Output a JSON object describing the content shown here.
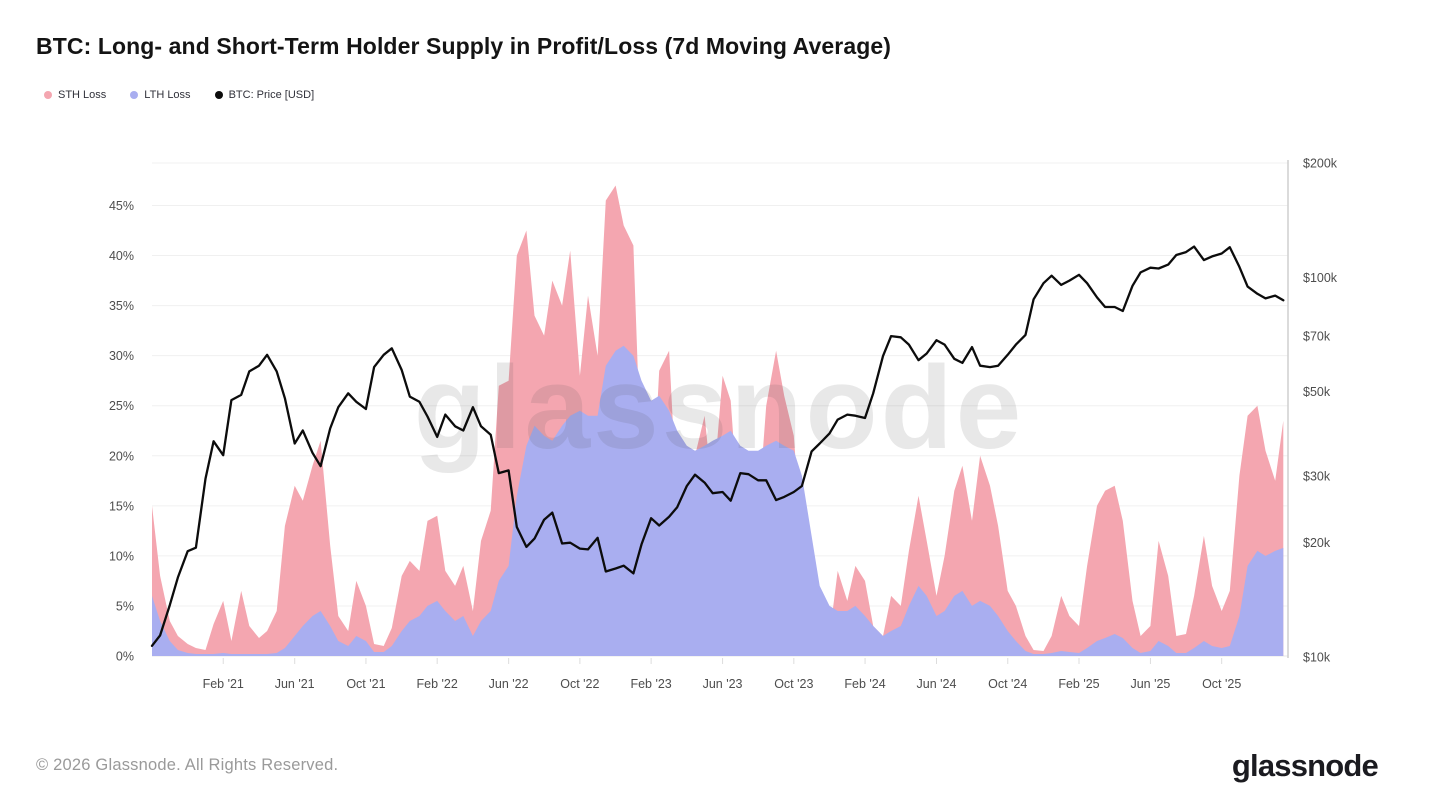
{
  "page": {
    "title": "BTC: Long- and Short-Term Holder Supply in Profit/Loss (7d Moving Average)"
  },
  "legend": {
    "items": [
      {
        "label": "STH Loss",
        "color": "#f4a6b0"
      },
      {
        "label": "LTH Loss",
        "color": "#a9aef0"
      },
      {
        "label": "BTC: Price [USD]",
        "color": "#0c0c0c"
      }
    ]
  },
  "watermark": {
    "text": "glassnode"
  },
  "footer": {
    "copyright": "© 2026 Glassnode. All Rights Reserved.",
    "brand": "glassnode"
  },
  "chart_data": {
    "type": "area",
    "title": "BTC: Long- and Short-Term Holder Supply in Profit/Loss (7d Moving Average)",
    "x_unit": "decimal_year",
    "x_range": [
      2020.75,
      2026.06
    ],
    "grid": "horizontal-only",
    "legend_position": "top-left",
    "left_axis": {
      "unit": "% of supply in loss",
      "range": [
        0,
        45
      ],
      "ticks": [
        {
          "v": 0,
          "label": "0%"
        },
        {
          "v": 5,
          "label": "5%"
        },
        {
          "v": 10,
          "label": "10%"
        },
        {
          "v": 15,
          "label": "15%"
        },
        {
          "v": 20,
          "label": "20%"
        },
        {
          "v": 25,
          "label": "25%"
        },
        {
          "v": 30,
          "label": "30%"
        },
        {
          "v": 35,
          "label": "35%"
        },
        {
          "v": 40,
          "label": "40%"
        },
        {
          "v": 45,
          "label": "45%"
        }
      ]
    },
    "right_axis": {
      "unit": "BTC price, USD (thousands)",
      "scale": "log",
      "range_kusd": [
        10,
        200
      ],
      "ticks": [
        {
          "v": 10,
          "label": "$10k"
        },
        {
          "v": 20,
          "label": "$20k"
        },
        {
          "v": 30,
          "label": "$30k"
        },
        {
          "v": 50,
          "label": "$50k"
        },
        {
          "v": 70,
          "label": "$70k"
        },
        {
          "v": 100,
          "label": "$100k"
        },
        {
          "v": 200,
          "label": "$200k"
        }
      ]
    },
    "x_ticks": [
      {
        "t": 2021.083,
        "label": "Feb '21"
      },
      {
        "t": 2021.417,
        "label": "Jun '21"
      },
      {
        "t": 2021.75,
        "label": "Oct '21"
      },
      {
        "t": 2022.083,
        "label": "Feb '22"
      },
      {
        "t": 2022.417,
        "label": "Jun '22"
      },
      {
        "t": 2022.75,
        "label": "Oct '22"
      },
      {
        "t": 2023.083,
        "label": "Feb '23"
      },
      {
        "t": 2023.417,
        "label": "Jun '23"
      },
      {
        "t": 2023.75,
        "label": "Oct '23"
      },
      {
        "t": 2024.083,
        "label": "Feb '24"
      },
      {
        "t": 2024.417,
        "label": "Jun '24"
      },
      {
        "t": 2024.75,
        "label": "Oct '24"
      },
      {
        "t": 2025.083,
        "label": "Feb '25"
      },
      {
        "t": 2025.417,
        "label": "Jun '25"
      },
      {
        "t": 2025.75,
        "label": "Oct '25"
      }
    ],
    "x": [
      2020.75,
      2020.788,
      2020.833,
      2020.871,
      2020.917,
      2020.955,
      2021.0,
      2021.038,
      2021.083,
      2021.121,
      2021.167,
      2021.205,
      2021.25,
      2021.288,
      2021.333,
      2021.371,
      2021.417,
      2021.455,
      2021.5,
      2021.538,
      2021.583,
      2021.621,
      2021.667,
      2021.705,
      2021.75,
      2021.788,
      2021.833,
      2021.871,
      2021.917,
      2021.955,
      2022.0,
      2022.038,
      2022.083,
      2022.121,
      2022.167,
      2022.205,
      2022.25,
      2022.288,
      2022.333,
      2022.371,
      2022.417,
      2022.455,
      2022.5,
      2022.538,
      2022.583,
      2022.621,
      2022.667,
      2022.705,
      2022.75,
      2022.788,
      2022.833,
      2022.871,
      2022.917,
      2022.955,
      2023.0,
      2023.038,
      2023.083,
      2023.121,
      2023.167,
      2023.205,
      2023.25,
      2023.288,
      2023.333,
      2023.371,
      2023.417,
      2023.455,
      2023.5,
      2023.538,
      2023.583,
      2023.621,
      2023.667,
      2023.705,
      2023.75,
      2023.788,
      2023.833,
      2023.871,
      2023.917,
      2023.955,
      2024.0,
      2024.038,
      2024.083,
      2024.121,
      2024.167,
      2024.205,
      2024.25,
      2024.288,
      2024.333,
      2024.371,
      2024.417,
      2024.455,
      2024.5,
      2024.538,
      2024.583,
      2024.621,
      2024.667,
      2024.705,
      2024.75,
      2024.788,
      2024.833,
      2024.871,
      2024.917,
      2024.955,
      2025.0,
      2025.038,
      2025.083,
      2025.121,
      2025.167,
      2025.205,
      2025.25,
      2025.288,
      2025.333,
      2025.371,
      2025.417,
      2025.455,
      2025.5,
      2025.538,
      2025.583,
      2025.621,
      2025.667,
      2025.705,
      2025.75,
      2025.788,
      2025.833,
      2025.871,
      2025.917,
      2025.955,
      2026.0,
      2026.038
    ],
    "series": [
      {
        "name": "STH Loss",
        "type": "area",
        "axis": "left",
        "unit": "%",
        "color": "#f4a6b0",
        "values": [
          15.0,
          8.0,
          3.5,
          2.0,
          1.2,
          0.8,
          0.6,
          3.2,
          5.5,
          1.5,
          6.5,
          3.0,
          1.8,
          2.5,
          4.5,
          13.0,
          17.0,
          15.5,
          19.0,
          21.5,
          11.0,
          4.0,
          2.5,
          7.5,
          5.0,
          1.2,
          1.0,
          2.8,
          8.0,
          9.5,
          8.5,
          13.5,
          14.0,
          8.5,
          7.0,
          9.0,
          4.5,
          11.5,
          14.5,
          27.0,
          27.5,
          40.0,
          42.5,
          34.0,
          32.0,
          37.5,
          35.0,
          40.5,
          28.0,
          36.0,
          30.0,
          45.5,
          47.0,
          43.0,
          41.0,
          18.0,
          13.0,
          28.5,
          30.5,
          15.0,
          8.0,
          20.0,
          24.0,
          16.0,
          28.0,
          25.5,
          12.0,
          18.5,
          14.0,
          25.0,
          30.5,
          26.0,
          22.0,
          11.0,
          4.0,
          2.5,
          2.0,
          8.5,
          5.5,
          9.0,
          7.5,
          3.0,
          2.0,
          6.0,
          5.0,
          10.5,
          16.0,
          11.5,
          6.0,
          10.0,
          16.5,
          19.0,
          13.5,
          20.0,
          17.0,
          13.0,
          6.5,
          5.0,
          2.0,
          0.6,
          0.5,
          2.0,
          6.0,
          4.0,
          3.0,
          9.0,
          15.0,
          16.5,
          17.0,
          13.5,
          5.5,
          2.0,
          3.0,
          11.5,
          8.0,
          2.0,
          2.2,
          6.0,
          12.0,
          7.0,
          4.5,
          6.5,
          18.0,
          24.0,
          25.0,
          20.5,
          17.5,
          23.5
        ]
      },
      {
        "name": "LTH Loss",
        "type": "area",
        "axis": "left",
        "unit": "%",
        "color": "#a9aef0",
        "values": [
          6.0,
          3.5,
          1.5,
          0.6,
          0.3,
          0.2,
          0.2,
          0.2,
          0.3,
          0.2,
          0.2,
          0.2,
          0.2,
          0.2,
          0.3,
          0.8,
          2.0,
          3.0,
          4.0,
          4.5,
          3.0,
          1.5,
          1.0,
          2.0,
          1.5,
          0.4,
          0.4,
          1.0,
          2.5,
          3.5,
          4.0,
          5.0,
          5.5,
          4.5,
          3.5,
          4.0,
          2.0,
          3.5,
          4.5,
          7.5,
          9.0,
          16.0,
          21.0,
          23.0,
          22.0,
          21.5,
          23.0,
          24.0,
          24.5,
          24.0,
          24.0,
          29.0,
          30.5,
          31.0,
          30.0,
          27.5,
          25.5,
          26.0,
          24.5,
          22.5,
          21.0,
          20.5,
          21.0,
          21.5,
          22.0,
          22.5,
          21.0,
          20.5,
          20.5,
          21.0,
          21.5,
          21.0,
          20.5,
          18.0,
          12.0,
          7.0,
          5.0,
          4.5,
          4.5,
          5.0,
          4.0,
          3.0,
          2.0,
          2.5,
          3.0,
          5.0,
          7.0,
          6.0,
          4.0,
          4.5,
          6.0,
          6.5,
          5.0,
          5.5,
          5.0,
          4.0,
          2.5,
          1.5,
          0.5,
          0.2,
          0.2,
          0.3,
          0.5,
          0.4,
          0.3,
          0.8,
          1.5,
          1.8,
          2.2,
          1.8,
          0.8,
          0.3,
          0.5,
          1.5,
          1.0,
          0.3,
          0.3,
          0.8,
          1.5,
          1.0,
          0.8,
          1.0,
          4.0,
          9.0,
          10.5,
          10.0,
          10.5,
          10.8
        ]
      },
      {
        "name": "BTC: Price [USD]",
        "type": "line",
        "axis": "right",
        "unit": "kUSD",
        "color": "#0c0c0c",
        "values": [
          10.7,
          11.4,
          13.7,
          16.2,
          19.0,
          19.4,
          29.5,
          37.0,
          34.0,
          47.5,
          49.0,
          56.5,
          58.5,
          62.5,
          56.5,
          48.0,
          36.5,
          39.5,
          34.5,
          31.8,
          40.0,
          45.5,
          49.5,
          47.0,
          45.0,
          58.0,
          62.5,
          65.0,
          57.0,
          48.5,
          47.0,
          43.0,
          38.0,
          43.5,
          40.5,
          39.5,
          45.5,
          40.5,
          38.5,
          30.5,
          31.0,
          22.0,
          19.5,
          20.5,
          23.0,
          24.0,
          19.9,
          20.0,
          19.3,
          19.2,
          20.6,
          16.8,
          17.1,
          17.4,
          16.6,
          19.8,
          23.2,
          22.2,
          23.4,
          24.8,
          28.2,
          30.2,
          28.8,
          27.0,
          27.2,
          25.8,
          30.5,
          30.3,
          29.2,
          29.2,
          25.9,
          26.4,
          27.2,
          28.2,
          34.8,
          36.5,
          38.8,
          42.2,
          43.5,
          43.2,
          42.6,
          49.5,
          62.0,
          70.0,
          69.5,
          66.5,
          60.5,
          63.0,
          68.3,
          66.5,
          61.0,
          59.5,
          65.5,
          58.5,
          58.0,
          58.5,
          62.5,
          66.5,
          70.5,
          87.5,
          96.5,
          101.0,
          95.5,
          98.0,
          101.5,
          96.5,
          88.5,
          83.5,
          83.5,
          81.5,
          95.0,
          103.0,
          106.0,
          105.5,
          108.0,
          114.5,
          116.5,
          120.5,
          111.0,
          113.5,
          115.5,
          120.0,
          106.5,
          94.5,
          90.5,
          88.0,
          89.5,
          87.0
        ]
      }
    ]
  }
}
